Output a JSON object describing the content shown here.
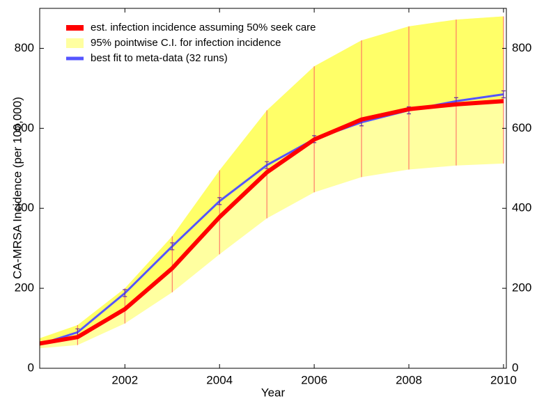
{
  "chart_data": {
    "type": "line",
    "xlabel": "Year",
    "ylabel": "CA-MRSA Incidence (per 100,000)",
    "x": [
      2000.2,
      2001,
      2002,
      2003,
      2004,
      2005,
      2006,
      2007,
      2008,
      2009,
      2010
    ],
    "series": [
      {
        "name": "est. infection incidence assuming 50% seek care",
        "color": "#ff0000",
        "values": [
          62,
          78,
          148,
          250,
          378,
          490,
          572,
          622,
          648,
          660,
          668
        ]
      },
      {
        "name": "95% pointwise C.I. for infection incidence",
        "color": "#ffffa0",
        "lower": [
          50,
          58,
          112,
          190,
          285,
          375,
          440,
          478,
          497,
          507,
          512
        ],
        "upper": [
          75,
          108,
          200,
          330,
          495,
          645,
          755,
          820,
          855,
          872,
          880
        ]
      },
      {
        "name": "best fit to meta-data (32 runs)",
        "color": "#5555ff",
        "values": [
          60,
          90,
          188,
          305,
          418,
          508,
          573,
          615,
          645,
          668,
          685
        ]
      }
    ],
    "xlim": [
      2000.2,
      2010.06
    ],
    "xticks": [
      2002,
      2004,
      2006,
      2008,
      2010
    ],
    "ylim": [
      0,
      900
    ],
    "yticks": [
      0,
      200,
      400,
      600,
      800
    ]
  }
}
